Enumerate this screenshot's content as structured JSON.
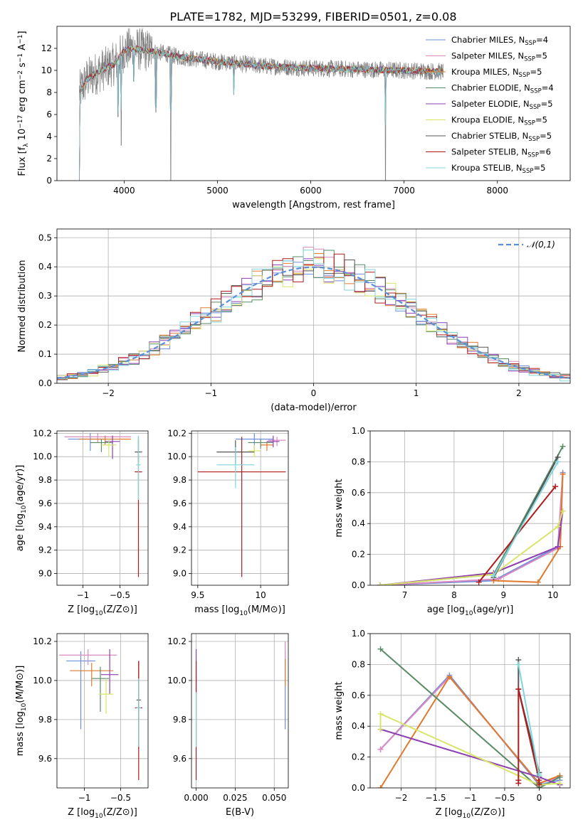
{
  "figure": {
    "title": "PLATE=1782, MJD=53299, FIBERID=0501, z=0.08"
  },
  "colors": {
    "Chabrier MILES": "#6f8fdc",
    "Salpeter MILES": "#d98ac0",
    "Kroupa MILES": "#df7a2c",
    "Chabrier ELODIE": "#5a8a66",
    "Salpeter ELODIE": "#8e3fb0",
    "Kroupa ELODIE": "#d8e46a",
    "Chabrier STELIB": "#555555",
    "Salpeter STELIB": "#b01c1c",
    "Kroupa STELIB": "#7fd6dc",
    "data": "#808080",
    "gauss": "#5b8fd6"
  },
  "chart_data": [
    {
      "id": "spectrum",
      "type": "line",
      "title": "PLATE=1782, MJD=53299, FIBERID=0501, z=0.08",
      "xlabel": "wavelength [Angstrom, rest frame]",
      "ylabel": "Flux [f_λ 10^-17 erg cm^-2 s^-1 A^-1]",
      "xlim": [
        3280,
        8780
      ],
      "ylim": [
        0,
        14
      ],
      "xticks": [
        4000,
        5000,
        6000,
        7000,
        8000
      ],
      "yticks": [
        0,
        2,
        4,
        6,
        8,
        10,
        12
      ],
      "grid": false,
      "legend_position": "top-right",
      "legend": [
        {
          "label": "Chabrier MILES",
          "nssp": "4"
        },
        {
          "label": "Salpeter MILES",
          "nssp": "5"
        },
        {
          "label": "Kroupa MILES",
          "nssp": "5"
        },
        {
          "label": "Chabrier ELODIE",
          "nssp": "4"
        },
        {
          "label": "Salpeter ELODIE",
          "nssp": "5"
        },
        {
          "label": "Kroupa ELODIE",
          "nssp": "5"
        },
        {
          "label": "Chabrier STELIB",
          "nssp": "5"
        },
        {
          "label": "Salpeter STELIB",
          "nssp": "6"
        },
        {
          "label": "Kroupa STELIB",
          "nssp": "5"
        }
      ],
      "continuum": {
        "x": [
          3520,
          3600,
          3750,
          3900,
          4000,
          4100,
          4250,
          4400,
          4600,
          5000,
          5500,
          6000,
          6500,
          7000,
          7400
        ],
        "y": [
          8.0,
          9.2,
          10.0,
          10.6,
          11.8,
          12.0,
          11.8,
          11.6,
          11.2,
          10.8,
          10.4,
          10.2,
          10.1,
          10.0,
          9.9
        ]
      },
      "data_range": [
        3520,
        7420
      ],
      "absorption_lines": [
        {
          "x": 3934,
          "y": 5.8
        },
        {
          "x": 3969,
          "y": 3.2
        },
        {
          "x": 4102,
          "y": 9.0
        },
        {
          "x": 4341,
          "y": 6.2
        },
        {
          "x": 4500,
          "y": 0.0
        },
        {
          "x": 5175,
          "y": 7.8
        },
        {
          "x": 6800,
          "y": 0.0
        }
      ]
    },
    {
      "id": "residuals",
      "type": "histogram",
      "xlabel": "(data-model)/error",
      "ylabel": "Normed distribution",
      "xlim": [
        -2.5,
        2.5
      ],
      "ylim": [
        0,
        0.53
      ],
      "xticks": [
        -2,
        -1,
        0,
        1,
        2
      ],
      "yticks": [
        0.0,
        0.1,
        0.2,
        0.3,
        0.4,
        0.5
      ],
      "grid": true,
      "bin_width": 0.1,
      "legend_position": "top-right",
      "legend": [
        "𝒩(0,1)"
      ]
    },
    {
      "id": "age_vs_Z",
      "type": "errorbar",
      "xlabel": "Z [log10(Z/Z⊙)]",
      "ylabel": "age [log10(age/yr)]",
      "xlim": [
        -1.35,
        -0.12
      ],
      "ylim": [
        8.9,
        10.22
      ],
      "xticks": [
        -1.0,
        -0.5
      ],
      "yticks": [
        9.0,
        9.2,
        9.4,
        9.6,
        9.8,
        10.0,
        10.2
      ],
      "grid": true,
      "points": [
        {
          "model": "Chabrier MILES",
          "x": -0.9,
          "xerr": 0.3,
          "y": 10.15,
          "yerr": [
            0.1,
            0.05
          ]
        },
        {
          "model": "Salpeter MILES",
          "x": -0.8,
          "xerr": 0.45,
          "y": 10.17,
          "yerr": [
            0.05,
            0.03
          ]
        },
        {
          "model": "Kroupa MILES",
          "x": -0.7,
          "xerr": 0.35,
          "y": 10.15,
          "yerr": [
            0.05,
            0.03
          ]
        },
        {
          "model": "Chabrier ELODIE",
          "x": -0.75,
          "xerr": 0.15,
          "y": 10.12,
          "yerr": [
            0.08,
            0.03
          ]
        },
        {
          "model": "Salpeter ELODIE",
          "x": -0.6,
          "xerr": 0.1,
          "y": 10.13,
          "yerr": [
            0.15,
            0.05
          ]
        },
        {
          "model": "Kroupa ELODIE",
          "x": -0.65,
          "xerr": 0.1,
          "y": 10.1,
          "yerr": [
            0.1,
            0.05
          ]
        },
        {
          "model": "Chabrier STELIB",
          "x": -0.25,
          "xerr": 0.05,
          "y": 10.04,
          "yerr": [
            0.1,
            0.1
          ]
        },
        {
          "model": "Salpeter STELIB",
          "x": -0.25,
          "xerr": 0.05,
          "y": 9.87,
          "yerr": [
            0.9,
            0.3
          ]
        },
        {
          "model": "Kroupa STELIB",
          "x": -0.25,
          "xerr": 0.03,
          "y": 9.93,
          "yerr": [
            0.3,
            0.25
          ]
        }
      ]
    },
    {
      "id": "age_vs_mass",
      "type": "errorbar",
      "xlabel": "mass [log10(M/M⊙)]",
      "ylabel": "",
      "xlim": [
        9.45,
        10.22
      ],
      "ylim": [
        8.9,
        10.22
      ],
      "xticks": [
        9.5,
        10.0
      ],
      "yticks": [
        9.0,
        9.2,
        9.4,
        9.6,
        9.8,
        10.0,
        10.2
      ],
      "grid": true,
      "points": [
        {
          "model": "Chabrier MILES",
          "x": 9.95,
          "xerr": 0.15,
          "y": 10.15,
          "yerr": [
            0.1,
            0.05
          ]
        },
        {
          "model": "Salpeter MILES",
          "x": 10.13,
          "xerr": 0.07,
          "y": 10.14,
          "yerr": [
            0.05,
            0.03
          ]
        },
        {
          "model": "Kroupa MILES",
          "x": 10.05,
          "xerr": 0.05,
          "y": 10.1,
          "yerr": [
            0.05,
            0.03
          ]
        },
        {
          "model": "Chabrier ELODIE",
          "x": 10.0,
          "xerr": 0.1,
          "y": 10.12,
          "yerr": [
            0.05,
            0.03
          ]
        },
        {
          "model": "Salpeter ELODIE",
          "x": 10.1,
          "xerr": 0.05,
          "y": 10.13,
          "yerr": [
            0.05,
            0.05
          ]
        },
        {
          "model": "Kroupa ELODIE",
          "x": 9.95,
          "xerr": 0.05,
          "y": 10.05,
          "yerr": [
            0.05,
            0.05
          ]
        },
        {
          "model": "Chabrier STELIB",
          "x": 9.8,
          "xerr": 0.15,
          "y": 10.04,
          "yerr": [
            0.1,
            0.1
          ]
        },
        {
          "model": "Salpeter STELIB",
          "x": 9.85,
          "xerr": 0.35,
          "y": 9.87,
          "yerr": [
            0.9,
            0.3
          ]
        },
        {
          "model": "Kroupa STELIB",
          "x": 9.8,
          "xerr": 0.15,
          "y": 9.93,
          "yerr": [
            0.2,
            0.15
          ]
        }
      ]
    },
    {
      "id": "weight_vs_age",
      "type": "line",
      "xlabel": "age [log10(age/yr)]",
      "ylabel": "mass weight",
      "xlim": [
        6.3,
        10.35
      ],
      "ylim": [
        0,
        1
      ],
      "xticks": [
        7,
        8,
        9,
        10
      ],
      "yticks": [
        0.0,
        0.2,
        0.4,
        0.6,
        0.8,
        1.0
      ],
      "grid": true,
      "series": [
        {
          "model": "Chabrier MILES",
          "x": [
            6.5,
            8.8,
            10.1,
            10.2
          ],
          "y": [
            0.0,
            0.03,
            0.25,
            0.73
          ]
        },
        {
          "model": "Salpeter MILES",
          "x": [
            6.5,
            8.9,
            10.1,
            10.2
          ],
          "y": [
            0.0,
            0.04,
            0.24,
            0.72
          ]
        },
        {
          "model": "Kroupa MILES",
          "x": [
            8.8,
            9.7,
            10.15,
            10.2
          ],
          "y": [
            0.03,
            0.02,
            0.25,
            0.72
          ]
        },
        {
          "model": "Chabrier ELODIE",
          "x": [
            6.5,
            8.8,
            10.2
          ],
          "y": [
            0.0,
            0.07,
            0.9
          ]
        },
        {
          "model": "Salpeter ELODIE",
          "x": [
            6.5,
            8.8,
            10.1,
            10.2
          ],
          "y": [
            0.0,
            0.08,
            0.25,
            0.48
          ]
        },
        {
          "model": "Kroupa ELODIE",
          "x": [
            6.5,
            8.8,
            10.1,
            10.2
          ],
          "y": [
            0.0,
            0.07,
            0.38,
            0.48
          ]
        },
        {
          "model": "Chabrier STELIB",
          "x": [
            8.8,
            10.1
          ],
          "y": [
            0.05,
            0.83
          ]
        },
        {
          "model": "Salpeter STELIB",
          "x": [
            8.5,
            10.05
          ],
          "y": [
            0.02,
            0.64
          ]
        },
        {
          "model": "Kroupa STELIB",
          "x": [
            8.8,
            10.1
          ],
          "y": [
            0.06,
            0.8
          ]
        }
      ]
    },
    {
      "id": "mass_vs_Z",
      "type": "errorbar",
      "xlabel": "Z [log10(Z/Z⊙)]",
      "ylabel": "mass [log10(M/M⊙)]",
      "xlim": [
        -1.38,
        -0.12
      ],
      "ylim": [
        9.45,
        10.24
      ],
      "xticks": [
        -1.0,
        -0.5
      ],
      "yticks": [
        9.6,
        9.8,
        10.0,
        10.2
      ],
      "grid": true,
      "points": [
        {
          "model": "Chabrier MILES",
          "x": -1.05,
          "xerr": 0.2,
          "y": 10.1,
          "yerr": [
            0.35,
            0.05
          ]
        },
        {
          "model": "Salpeter MILES",
          "x": -0.95,
          "xerr": 0.4,
          "y": 10.13,
          "yerr": [
            0.05,
            0.03
          ]
        },
        {
          "model": "Kroupa MILES",
          "x": -0.9,
          "xerr": 0.3,
          "y": 10.05,
          "yerr": [
            0.08,
            0.04
          ]
        },
        {
          "model": "Chabrier ELODIE",
          "x": -0.78,
          "xerr": 0.12,
          "y": 10.01,
          "yerr": [
            0.17,
            0.06
          ]
        },
        {
          "model": "Salpeter ELODIE",
          "x": -0.65,
          "xerr": 0.12,
          "y": 10.03,
          "yerr": [
            0.1,
            0.13
          ]
        },
        {
          "model": "Kroupa ELODIE",
          "x": -0.7,
          "xerr": 0.1,
          "y": 9.93,
          "yerr": [
            0.1,
            0.08
          ]
        },
        {
          "model": "Chabrier STELIB",
          "x": -0.25,
          "xerr": 0.03,
          "y": 9.9,
          "yerr": [
            0.25,
            0.2
          ]
        },
        {
          "model": "Salpeter STELIB",
          "x": -0.25,
          "xerr": 0.05,
          "y": 9.86,
          "yerr": [
            0.37,
            0.24
          ]
        },
        {
          "model": "Kroupa STELIB",
          "x": -0.25,
          "xerr": 0.03,
          "y": 9.86,
          "yerr": [
            0.2,
            0.15
          ]
        }
      ]
    },
    {
      "id": "mass_vs_ebv",
      "type": "errorbar",
      "xlabel": "E(B-V)",
      "ylabel": "",
      "xlim": [
        -0.003,
        0.059
      ],
      "ylim": [
        9.45,
        10.24
      ],
      "xticks": [
        0.0,
        0.025,
        0.05
      ],
      "xticklabels": [
        "0.000",
        "0.025",
        "0.050"
      ],
      "yticks": [
        9.6,
        9.8,
        10.0,
        10.2
      ],
      "grid": true,
      "points": [
        {
          "model": "Chabrier MILES",
          "x": 0.057,
          "y": 10.1,
          "yerr": [
            0.35,
            0.05
          ]
        },
        {
          "model": "Salpeter MILES",
          "x": 0.057,
          "y": 10.13,
          "yerr": [
            0.05,
            0.07
          ]
        },
        {
          "model": "Kroupa MILES",
          "x": 0.057,
          "y": 10.05,
          "yerr": [
            0.08,
            0.06
          ]
        },
        {
          "model": "Salpeter ELODIE",
          "x": 0.0,
          "y": 10.03,
          "yerr": [
            0.1,
            0.13
          ]
        },
        {
          "model": "Salpeter STELIB",
          "x": 0.0,
          "y": 9.86,
          "yerr": [
            0.37,
            0.24
          ]
        },
        {
          "model": "Kroupa STELIB",
          "x": 0.0,
          "y": 9.86,
          "yerr": [
            0.2,
            0.08
          ]
        }
      ]
    },
    {
      "id": "weight_vs_Z",
      "type": "line",
      "xlabel": "Z [log10(Z/Z⊙)]",
      "ylabel": "mass weight",
      "xlim": [
        -2.45,
        0.45
      ],
      "ylim": [
        0,
        1
      ],
      "xticks": [
        -2.0,
        -1.5,
        -1.0,
        -0.5,
        0.0
      ],
      "yticks": [
        0.0,
        0.2,
        0.4,
        0.6,
        0.8,
        1.0
      ],
      "grid": true,
      "series": [
        {
          "model": "Chabrier MILES",
          "x": [
            -2.3,
            -1.3,
            0.0,
            0.3
          ],
          "y": [
            0.25,
            0.73,
            0.02,
            0.05
          ]
        },
        {
          "model": "Salpeter MILES",
          "x": [
            -2.3,
            -1.3,
            0.0,
            0.3
          ],
          "y": [
            0.25,
            0.72,
            0.03,
            0.07
          ]
        },
        {
          "model": "Kroupa MILES",
          "x": [
            -2.3,
            -1.3,
            0.0,
            0.3
          ],
          "y": [
            0.0,
            0.72,
            0.03,
            0.08
          ]
        },
        {
          "model": "Chabrier ELODIE",
          "x": [
            -2.3,
            0.0,
            0.3
          ],
          "y": [
            0.9,
            0.0,
            0.07
          ]
        },
        {
          "model": "Salpeter ELODIE",
          "x": [
            -2.3,
            0.0,
            0.3
          ],
          "y": [
            0.38,
            0.07,
            0.02
          ]
        },
        {
          "model": "Kroupa ELODIE",
          "x": [
            -2.3,
            -2.3,
            0.0,
            0.3
          ],
          "y": [
            0.38,
            0.48,
            0.02,
            0.03
          ]
        },
        {
          "model": "Chabrier STELIB",
          "x": [
            -0.3,
            -0.3,
            0.0,
            0.0
          ],
          "y": [
            0.83,
            0.64,
            0.1,
            0.03
          ]
        },
        {
          "model": "Salpeter STELIB",
          "x": [
            -0.3,
            -0.3,
            -0.3,
            0.0,
            0.0
          ],
          "y": [
            0.05,
            0.03,
            0.64,
            0.05,
            0.02
          ]
        },
        {
          "model": "Kroupa STELIB",
          "x": [
            -0.3,
            0.0,
            0.0
          ],
          "y": [
            0.8,
            0.08,
            0.09
          ]
        }
      ]
    }
  ]
}
